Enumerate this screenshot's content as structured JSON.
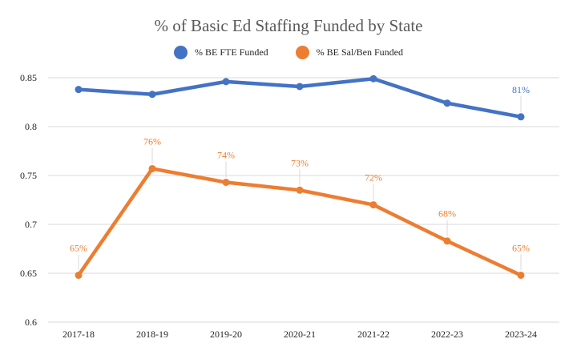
{
  "chart_data": {
    "type": "line",
    "title": "% of Basic Ed Staffing Funded by State",
    "xlabel": "",
    "ylabel": "",
    "ylim": [
      0.6,
      0.85
    ],
    "yticks": [
      "0.6",
      "0.65",
      "0.7",
      "0.75",
      "0.8",
      "0.85"
    ],
    "ytick_values": [
      0.6,
      0.65,
      0.7,
      0.75,
      0.8,
      0.85
    ],
    "grid": true,
    "legend_position": "top-center",
    "categories": [
      "2017-18",
      "2018-19",
      "2019-20",
      "2020-21",
      "2021-22",
      "2022-23",
      "2023-24"
    ],
    "series": [
      {
        "name": "% BE FTE Funded",
        "color": "#4472C4",
        "values": [
          0.838,
          0.833,
          0.846,
          0.841,
          0.849,
          0.824,
          0.81
        ],
        "labels": [
          null,
          null,
          null,
          null,
          null,
          null,
          "81%"
        ]
      },
      {
        "name": "% BE Sal/Ben Funded",
        "color": "#ED7D31",
        "values": [
          0.648,
          0.757,
          0.743,
          0.735,
          0.72,
          0.683,
          0.648
        ],
        "labels": [
          "65%",
          "76%",
          "74%",
          "73%",
          "72%",
          "68%",
          "65%"
        ]
      }
    ]
  }
}
